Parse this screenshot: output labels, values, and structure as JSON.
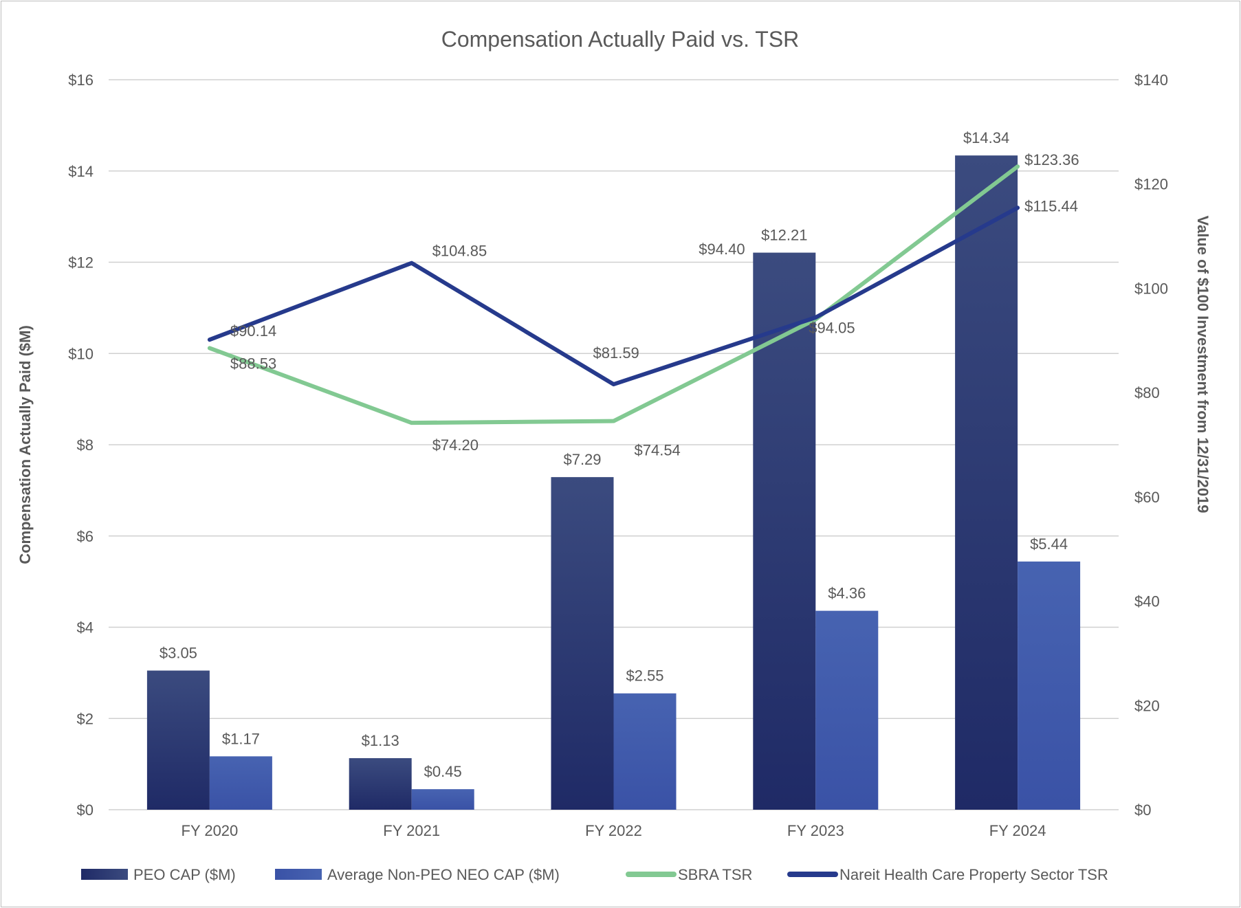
{
  "chart_data": {
    "type": "bar+line",
    "title": "Compensation Actually Paid vs. TSR",
    "ylabel": "Compensation Actually Paid ($M)",
    "y2label": "Value of $100 Investment from 12/31/2019",
    "ylim": [
      0,
      16
    ],
    "y2lim": [
      0,
      140
    ],
    "yticks": [
      "$0",
      "$2",
      "$4",
      "$6",
      "$8",
      "$10",
      "$12",
      "$14",
      "$16"
    ],
    "y2ticks": [
      "$0",
      "$20",
      "$40",
      "$60",
      "$80",
      "$100",
      "$120",
      "$140"
    ],
    "grid": true,
    "legend_position": "bottom",
    "categories": [
      "FY 2020",
      "FY 2021",
      "FY 2022",
      "FY 2023",
      "FY 2024"
    ],
    "series": [
      {
        "name": "PEO CAP ($M)",
        "type": "bar",
        "axis": "left",
        "values": [
          3.05,
          1.13,
          7.29,
          12.21,
          14.34
        ],
        "labels": [
          "$3.05",
          "$1.13",
          "$7.29",
          "$12.21",
          "$14.34"
        ],
        "color": "#2a3773"
      },
      {
        "name": "Average Non-PEO NEO CAP ($M)",
        "type": "bar",
        "axis": "left",
        "values": [
          1.17,
          0.45,
          2.55,
          4.36,
          5.44
        ],
        "labels": [
          "$1.17",
          "$0.45",
          "$2.55",
          "$4.36",
          "$5.44"
        ],
        "color": "#4059aa"
      },
      {
        "name": "SBRA TSR",
        "type": "line",
        "axis": "right",
        "values": [
          88.53,
          74.2,
          74.54,
          94.05,
          123.36
        ],
        "labels": [
          "$88.53",
          "$74.20",
          "$74.54",
          "$94.05",
          "$123.36"
        ],
        "color": "#82c992"
      },
      {
        "name": "Nareit Health Care Property Sector TSR",
        "type": "line",
        "axis": "right",
        "values": [
          90.14,
          104.85,
          81.59,
          94.4,
          115.44
        ],
        "labels": [
          "$90.14",
          "$104.85",
          "$81.59",
          "$94.40",
          "$115.44"
        ],
        "color": "#263a8c"
      }
    ]
  }
}
